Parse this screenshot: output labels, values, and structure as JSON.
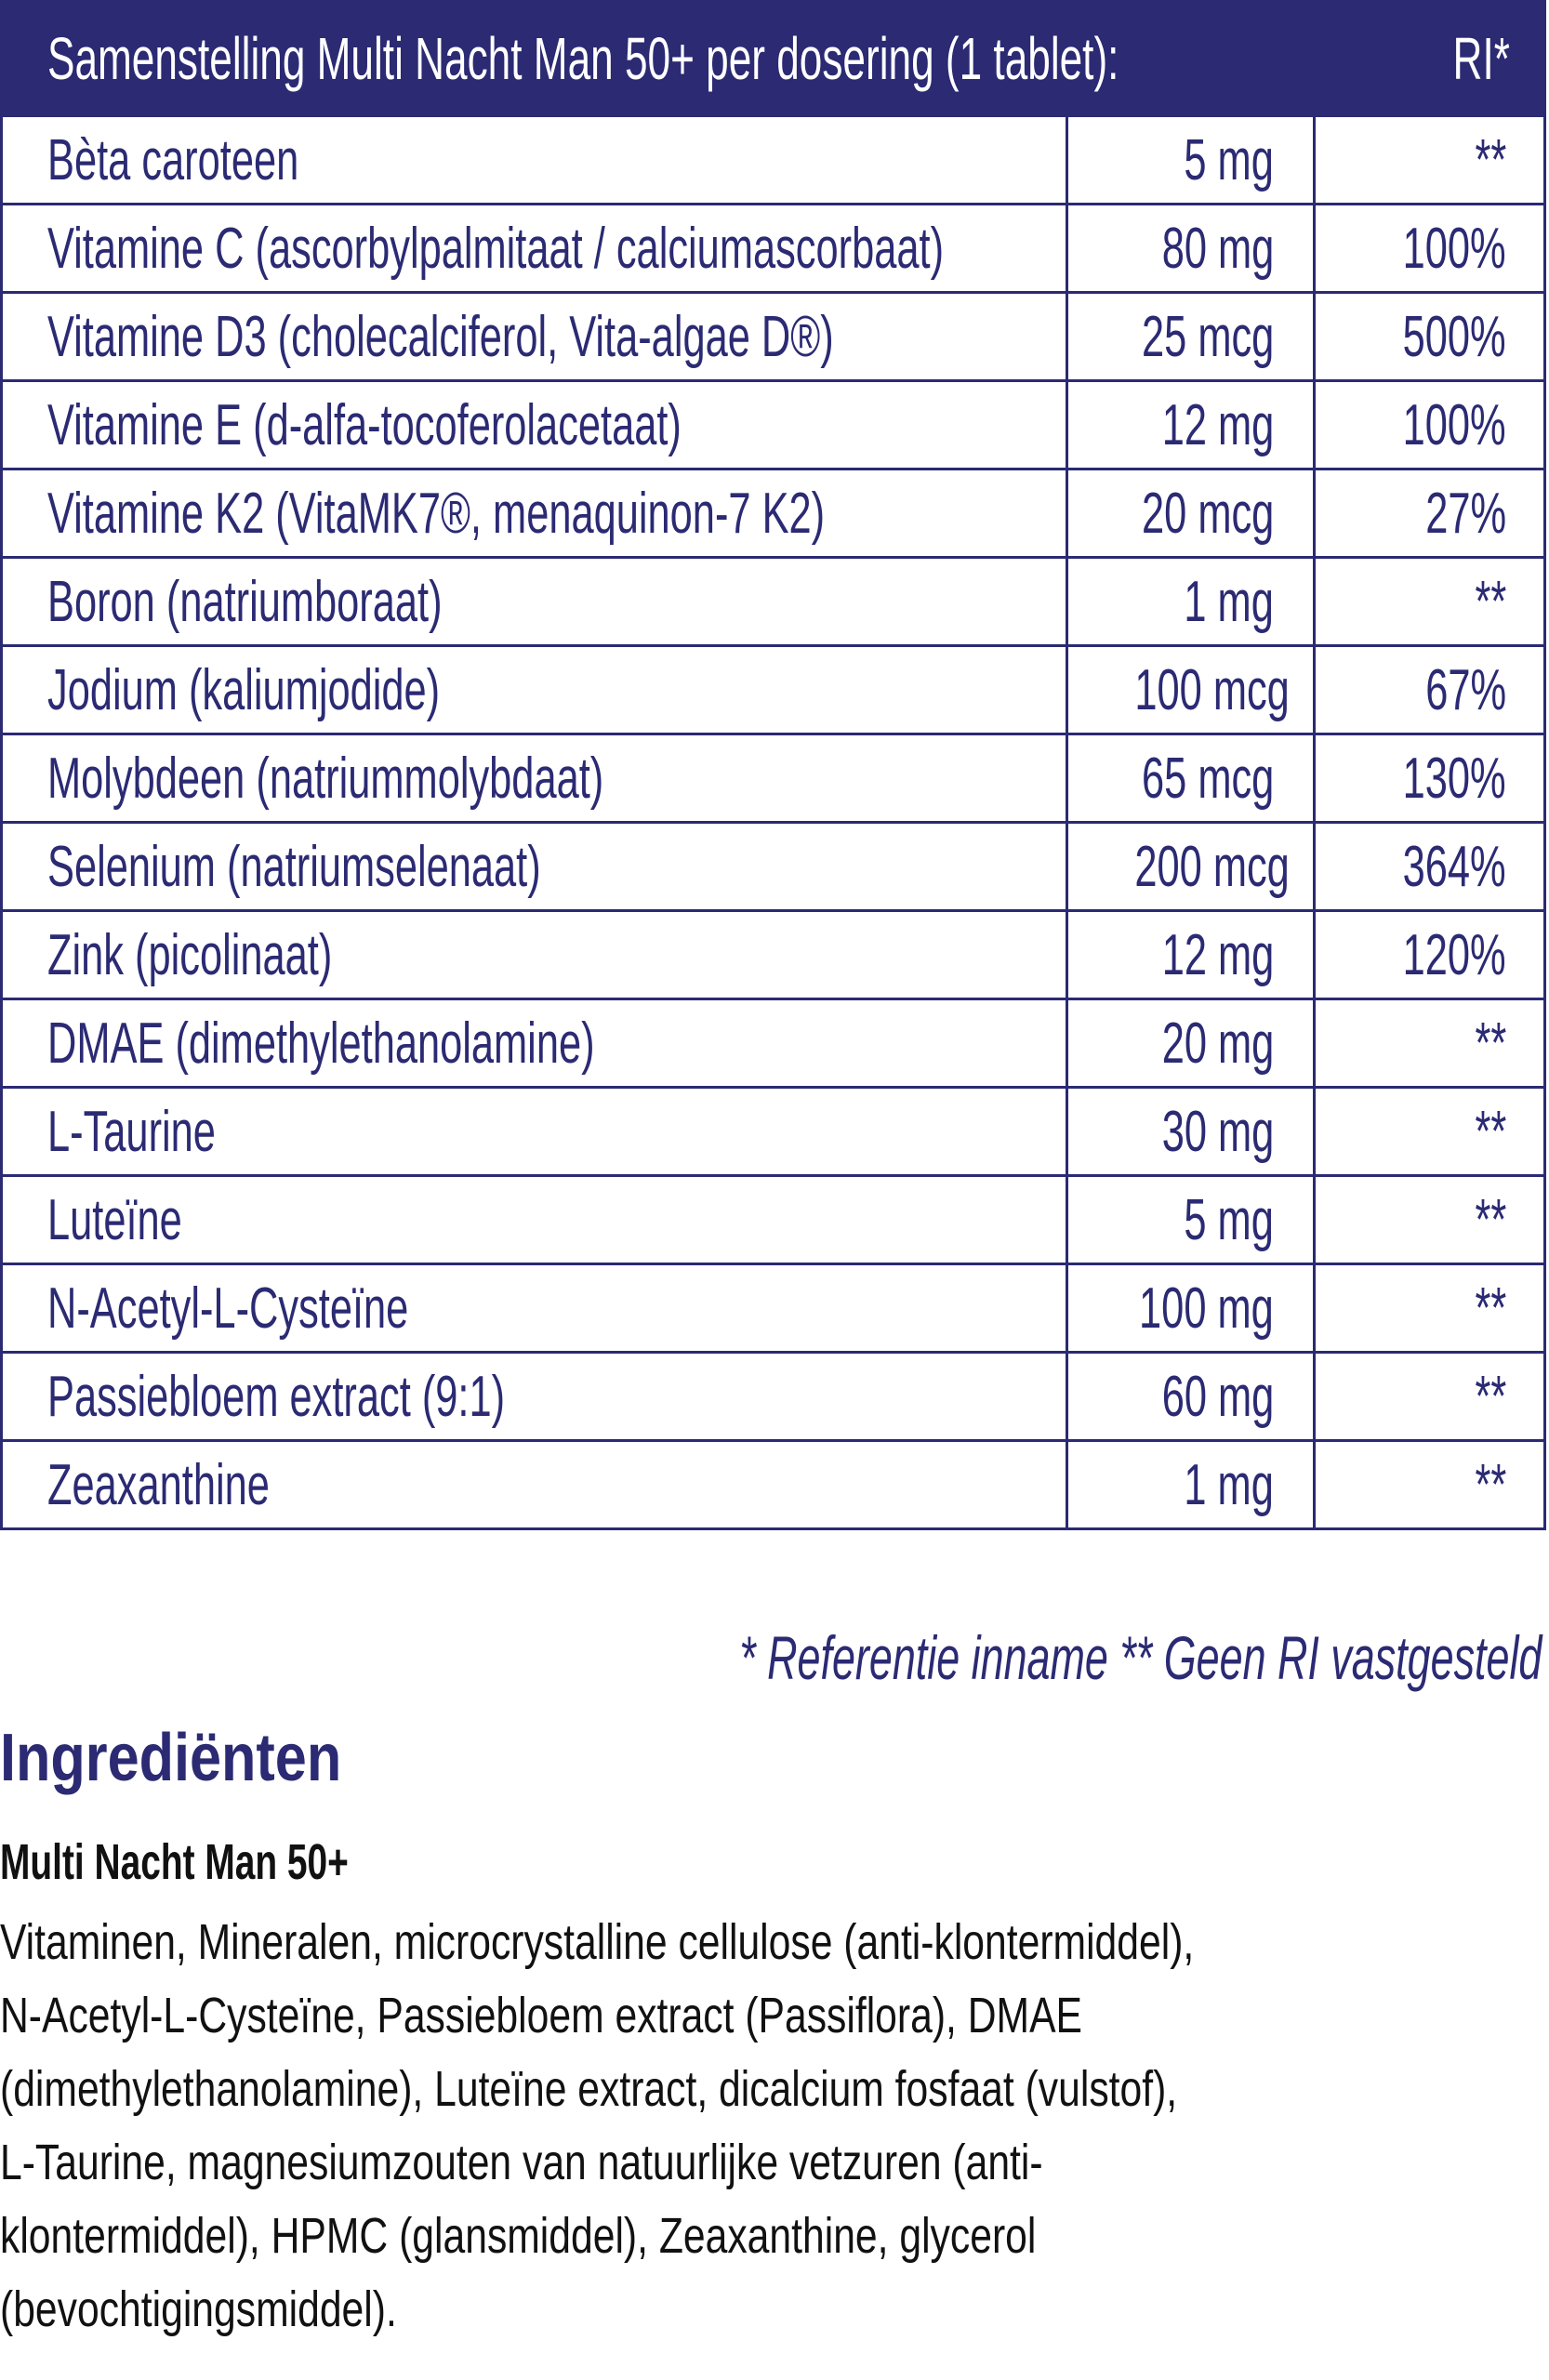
{
  "table": {
    "header": {
      "title": "Samenstelling Multi Nacht Man 50+ per dosering (1 tablet):",
      "ri": "RI*"
    },
    "rows": [
      {
        "name": "Bèta caroteen",
        "amount": "5 mg",
        "ri": "**"
      },
      {
        "name": "Vitamine C (ascorbylpalmitaat / calciumascorbaat)",
        "amount": "80 mg",
        "ri": "100%"
      },
      {
        "name": "Vitamine D3 (cholecalciferol, Vita-algae D®)",
        "amount": "25 mcg",
        "ri": "500%"
      },
      {
        "name": "Vitamine E (d-alfa-tocoferolacetaat)",
        "amount": "12 mg",
        "ri": "100%"
      },
      {
        "name": "Vitamine K2 (VitaMK7®, menaquinon-7 K2)",
        "amount": "20 mcg",
        "ri": "27%"
      },
      {
        "name": "Boron (natriumboraat)",
        "amount": "1 mg",
        "ri": "**"
      },
      {
        "name": "Jodium (kaliumjodide)",
        "amount": "100 mcg",
        "ri": "67%"
      },
      {
        "name": "Molybdeen (natriummolybdaat)",
        "amount": "65 mcg",
        "ri": "130%"
      },
      {
        "name": "Selenium (natriumselenaat)",
        "amount": "200 mcg",
        "ri": "364%"
      },
      {
        "name": "Zink (picolinaat)",
        "amount": "12 mg",
        "ri": "120%"
      },
      {
        "name": "DMAE (dimethylethanolamine)",
        "amount": "20 mg",
        "ri": "**"
      },
      {
        "name": "L-Taurine",
        "amount": "30 mg",
        "ri": "**"
      },
      {
        "name": "Luteïne",
        "amount": "5 mg",
        "ri": "**"
      },
      {
        "name": "N-Acetyl-L-Cysteïne",
        "amount": "100 mg",
        "ri": "**"
      },
      {
        "name": "Passiebloem extract (9:1)",
        "amount": "60 mg",
        "ri": "**"
      },
      {
        "name": "Zeaxanthine",
        "amount": "1 mg",
        "ri": "**"
      }
    ]
  },
  "footnote": "* Referentie inname  ** Geen RI vastgesteld",
  "ingredients": {
    "heading": "Ingrediënten",
    "product": "Multi Nacht Man 50+",
    "lines": [
      "Vitaminen, Mineralen, microcrystalline cellulose (anti-klontermiddel),",
      "N-Acetyl-L-Cysteïne, Passiebloem extract (Passiflora), DMAE",
      "(dimethylethanolamine), Luteïne extract, dicalcium fosfaat (vulstof),",
      "L-Taurine, magnesiumzouten van natuurlijke vetzuren (anti-",
      "klontermiddel), HPMC (glansmiddel), Zeaxanthine, glycerol",
      "(bevochtigingsmiddel)."
    ]
  },
  "colors": {
    "brand": "#2b2a73",
    "text": "#111111"
  }
}
